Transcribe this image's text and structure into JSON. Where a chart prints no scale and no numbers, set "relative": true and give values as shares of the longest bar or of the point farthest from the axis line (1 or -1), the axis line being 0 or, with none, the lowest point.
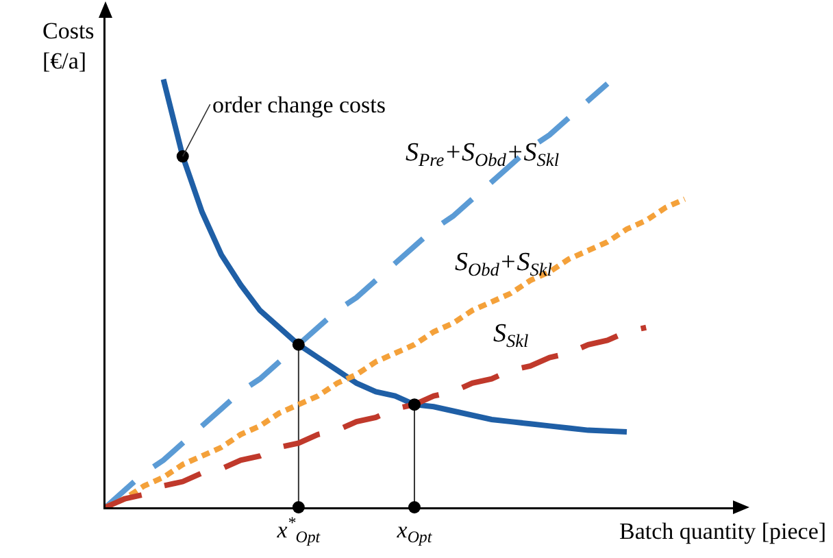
{
  "chart_data": {
    "type": "line",
    "relative": true,
    "xlabel": "Batch quantity [piece]",
    "ylabel": "Costs\n[€/a]",
    "grid": false,
    "legend": false,
    "tick_labels": "x",
    "categories": [
      null,
      null,
      null,
      null,
      null,
      null,
      null,
      null,
      null,
      null,
      "x$^{*}$$_{Opt}$",
      null,
      null,
      null,
      null,
      null,
      "x$_{Opt}$",
      null,
      null,
      null,
      null,
      null,
      null,
      null,
      null,
      null,
      null,
      null,
      null,
      null,
      null,
      null,
      null
    ],
    "annotations": [
      "order change costs"
    ],
    "series": [
      {
        "type": "line",
        "color": "#1f5fa6",
        "line_style": "solid",
        "marker": "none",
        "values": [
          null,
          null,
          null,
          1.0,
          0.82,
          0.69,
          0.59,
          0.52,
          0.46,
          0.42,
          0.38,
          0.35,
          0.32,
          0.29,
          0.27,
          0.26,
          0.24,
          0.235,
          0.225,
          0.215,
          0.205,
          0.2,
          0.195,
          0.19,
          0.185,
          0.18,
          0.178,
          0.176,
          null,
          null,
          null,
          null,
          null
        ]
      },
      {
        "type": "line",
        "name": "S$_{Pre}$+S$_{Obd}$+S$_{Skl}$",
        "color": "#5b9bd5",
        "line_style": "dashed",
        "marker": "none",
        "values": [
          0,
          0.04,
          0.08,
          0.11,
          0.15,
          0.19,
          0.23,
          0.27,
          0.3,
          0.34,
          0.38,
          0.42,
          0.46,
          0.49,
          0.53,
          0.57,
          0.61,
          0.65,
          0.68,
          0.72,
          0.76,
          0.8,
          0.84,
          0.87,
          0.91,
          0.95,
          0.99,
          null,
          null,
          null,
          null,
          null,
          null
        ]
      },
      {
        "type": "line",
        "name": "S$_{Obd}$+S$_{Skl}$",
        "color": "#f4a13a",
        "line_style": "dotted",
        "marker": "none",
        "values": [
          0,
          0.02,
          0.05,
          0.07,
          0.1,
          0.12,
          0.14,
          0.17,
          0.19,
          0.22,
          0.24,
          0.26,
          0.29,
          0.31,
          0.34,
          0.36,
          0.38,
          0.41,
          0.43,
          0.46,
          0.48,
          0.5,
          0.53,
          0.55,
          0.58,
          0.6,
          0.62,
          0.65,
          0.67,
          0.7,
          0.72,
          null,
          null
        ]
      },
      {
        "type": "line",
        "name": "S$_{Skl}$",
        "color": "#c0392b",
        "line_style": "dashed",
        "marker": "none",
        "values": [
          0,
          0.02,
          0.03,
          0.05,
          0.06,
          0.08,
          0.09,
          0.11,
          0.12,
          0.14,
          0.15,
          0.17,
          0.18,
          0.2,
          0.21,
          0.23,
          0.24,
          0.26,
          0.27,
          0.29,
          0.3,
          0.32,
          0.33,
          0.35,
          0.36,
          0.38,
          0.39,
          0.41,
          0.42,
          null,
          null,
          null,
          null
        ]
      },
      {
        "type": "scatter",
        "color": "#000000",
        "marker": "circle",
        "values": [
          null,
          null,
          null,
          null,
          0.82,
          null,
          null,
          null,
          null,
          null,
          0.38,
          null,
          null,
          null,
          null,
          null,
          0.24,
          null,
          null,
          null,
          null,
          null,
          null,
          null,
          null,
          null,
          null,
          null,
          null,
          null,
          null,
          null,
          null
        ]
      },
      {
        "type": "scatter",
        "color": "#000000",
        "marker": "circle",
        "values": [
          null,
          null,
          null,
          null,
          null,
          null,
          null,
          null,
          null,
          null,
          0,
          null,
          null,
          null,
          null,
          null,
          0,
          null,
          null,
          null,
          null,
          null,
          null,
          null,
          null,
          null,
          null,
          null,
          null,
          null,
          null,
          null,
          null
        ]
      }
    ]
  }
}
